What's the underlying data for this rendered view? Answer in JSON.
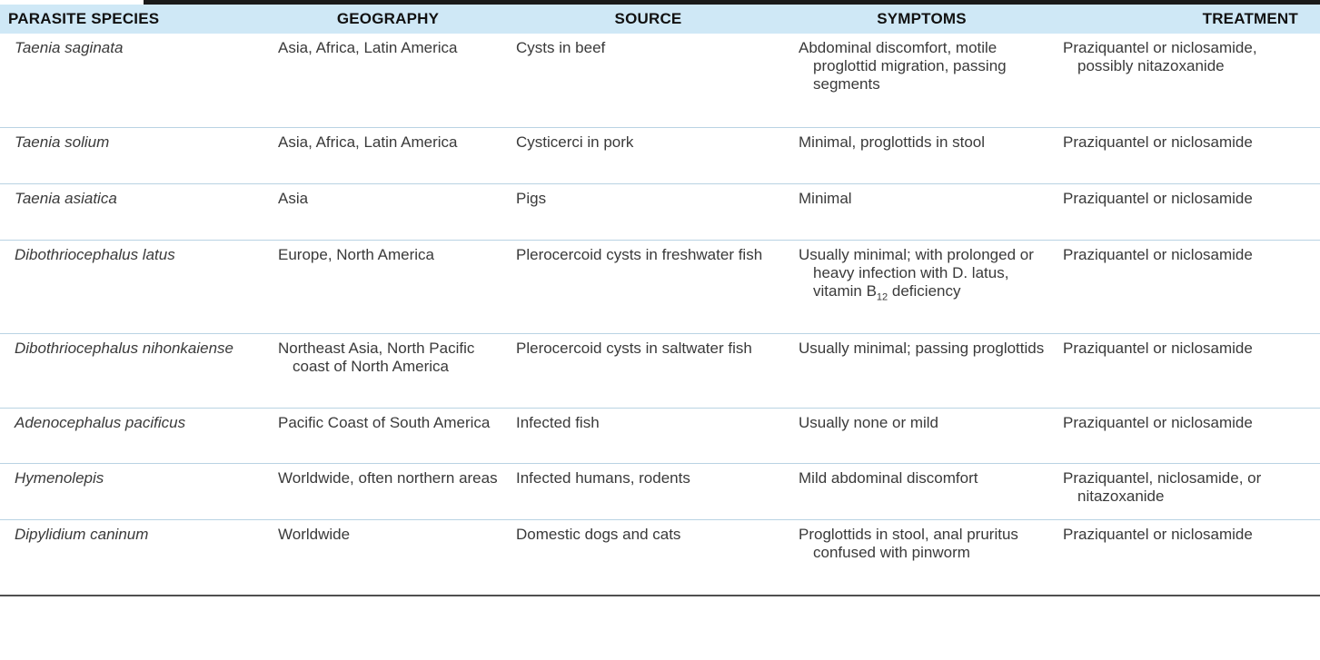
{
  "table": {
    "headers": [
      "PARASITE SPECIES",
      "GEOGRAPHY",
      "SOURCE",
      "SYMPTOMS",
      "TREATMENT"
    ],
    "rows": [
      {
        "species": "Taenia saginata",
        "geography": "Asia, Africa, Latin America",
        "source": "Cysts in beef",
        "symptoms": "Abdominal discomfort, motile proglottid migration, passing segments",
        "treatment": "Praziquantel or niclosamide, possibly nitazoxanide"
      },
      {
        "species": "Taenia solium",
        "geography": "Asia, Africa, Latin America",
        "source": "Cysticerci in pork",
        "symptoms": "Minimal, proglottids in stool",
        "treatment": "Praziquantel or niclosamide"
      },
      {
        "species": "Taenia asiatica",
        "geography": "Asia",
        "source": "Pigs",
        "symptoms": "Minimal",
        "treatment": "Praziquantel or niclosamide"
      },
      {
        "species": "Dibothriocephalus latus",
        "geography": "Europe, North America",
        "source": "Plerocercoid cysts in freshwater fish",
        "symptoms_prefix": "Usually minimal; with prolonged or heavy infection with D. latus, vitamin B",
        "symptoms_sub": "12",
        "symptoms_suffix": " deficiency",
        "treatment": "Praziquantel or niclosamide"
      },
      {
        "species": "Dibothriocephalus nihonkaiense",
        "geography": "Northeast Asia, North Pacific coast of North America",
        "source": "Plerocercoid cysts in saltwater fish",
        "symptoms": "Usually minimal; passing proglottids",
        "treatment": "Praziquantel or niclosamide"
      },
      {
        "species": "Adenocephalus pacificus",
        "geography": "Pacific Coast of South America",
        "source": "Infected fish",
        "symptoms": "Usually none or mild",
        "treatment": "Praziquantel or niclosamide"
      },
      {
        "species": "Hymenolepis",
        "geography": "Worldwide, often northern areas",
        "source": "Infected humans, rodents",
        "symptoms": "Mild abdominal discomfort",
        "treatment": "Praziquantel, niclosamide, or nitazoxanide"
      },
      {
        "species": "Dipylidium caninum",
        "geography": "Worldwide",
        "source": "Domestic dogs and cats",
        "symptoms": "Proglottids in stool, anal pruritus confused with pinworm",
        "treatment": "Praziquantel or niclosamide"
      }
    ]
  },
  "colors": {
    "header_bg": "#cfe8f6",
    "row_divider": "#b9d3e3",
    "text": "#3a3a3a",
    "bottom_rule": "#4f4f4f"
  }
}
